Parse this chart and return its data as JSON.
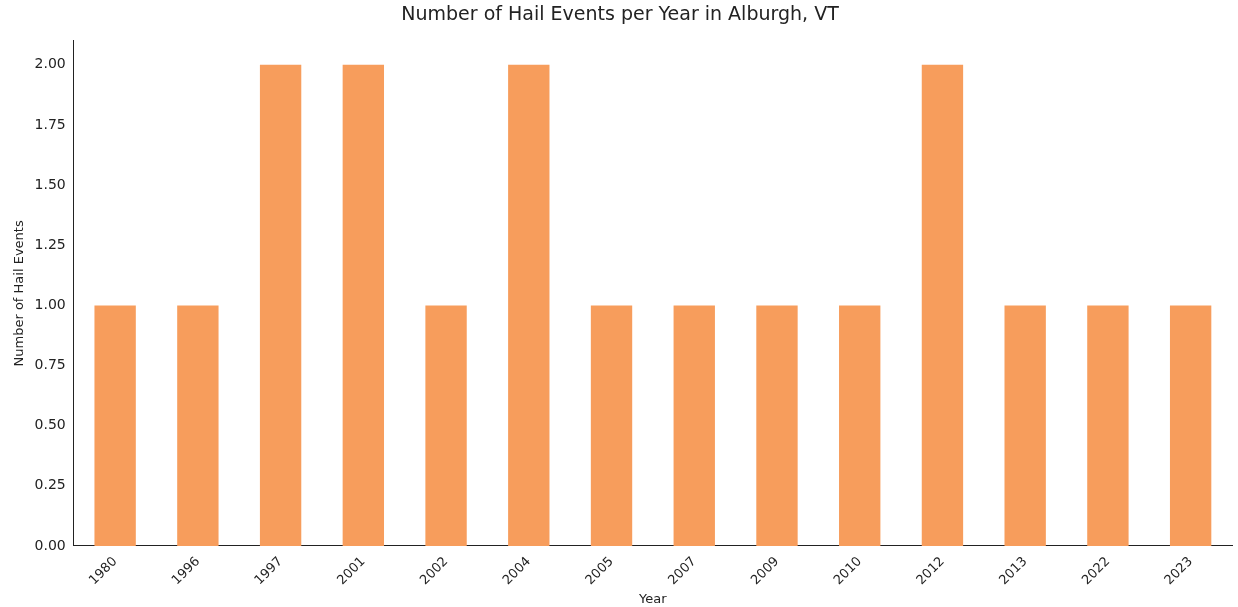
{
  "chart_data": {
    "type": "bar",
    "title": "Number of Hail Events per Year in Alburgh, VT",
    "xlabel": "Year",
    "ylabel": "Number of Hail Events",
    "categories": [
      "1980",
      "1996",
      "1997",
      "2001",
      "2002",
      "2004",
      "2005",
      "2007",
      "2009",
      "2010",
      "2012",
      "2013",
      "2022",
      "2023"
    ],
    "values": [
      1,
      1,
      2,
      2,
      1,
      2,
      1,
      1,
      1,
      1,
      2,
      1,
      1,
      1
    ],
    "color": "#f79d5c",
    "ylim": [
      0,
      2.1
    ],
    "yticks": [
      {
        "value": 0,
        "label": "0.00"
      },
      {
        "value": 0.25,
        "label": "0.25"
      },
      {
        "value": 0.5,
        "label": "0.50"
      },
      {
        "value": 0.75,
        "label": "0.75"
      },
      {
        "value": 1,
        "label": "1.00"
      },
      {
        "value": 1.25,
        "label": "1.25"
      },
      {
        "value": 1.5,
        "label": "1.50"
      },
      {
        "value": 1.75,
        "label": "1.75"
      },
      {
        "value": 2,
        "label": "2.00"
      }
    ]
  }
}
